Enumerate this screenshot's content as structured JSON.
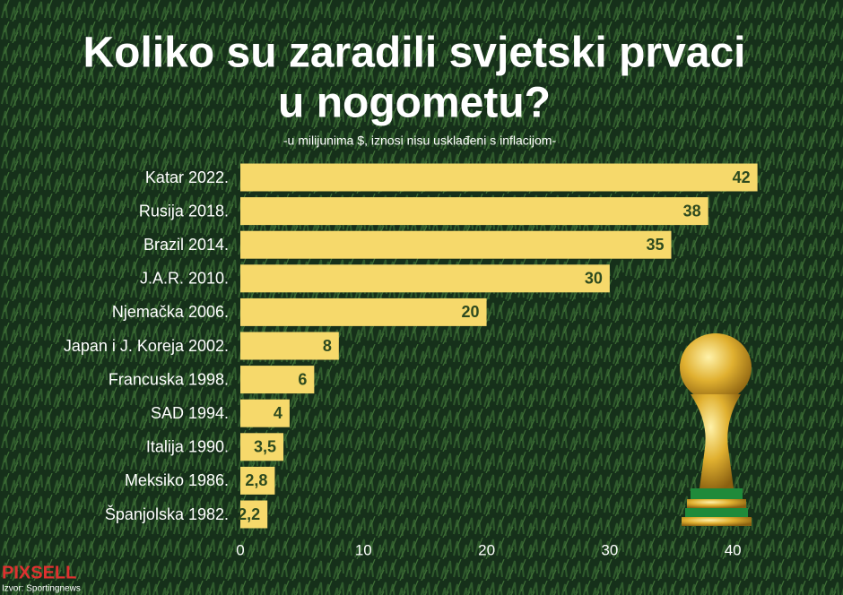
{
  "chart_data": {
    "type": "bar",
    "orientation": "horizontal",
    "title": [
      "Koliko su zaradili svjetski prvaci",
      "u nogometu?"
    ],
    "subtitle": "-u milijunima $, iznosi nisu usklađeni s inflacijom-",
    "categories": [
      "Katar 2022.",
      "Rusija 2018.",
      "Brazil 2014.",
      "J.A.R. 2010.",
      "Njemačka 2006.",
      "Japan i J. Koreja 2002.",
      "Francuska 1998.",
      "SAD 1994.",
      "Italija 1990.",
      "Meksiko 1986.",
      "Španjolska 1982."
    ],
    "values": [
      42,
      38,
      35,
      30,
      20,
      8,
      6,
      4,
      3.5,
      2.8,
      2.2
    ],
    "value_labels": [
      "42",
      "38",
      "35",
      "30",
      "20",
      "8",
      "6",
      "4",
      "3,5",
      "2,8",
      "2,2"
    ],
    "color": "#f6d96b",
    "xlim": [
      0,
      48
    ],
    "xticks": [
      0,
      10,
      20,
      30,
      40
    ],
    "grid": false,
    "logo": "PIXSELL",
    "source": "Izvor: Sportingnews"
  }
}
